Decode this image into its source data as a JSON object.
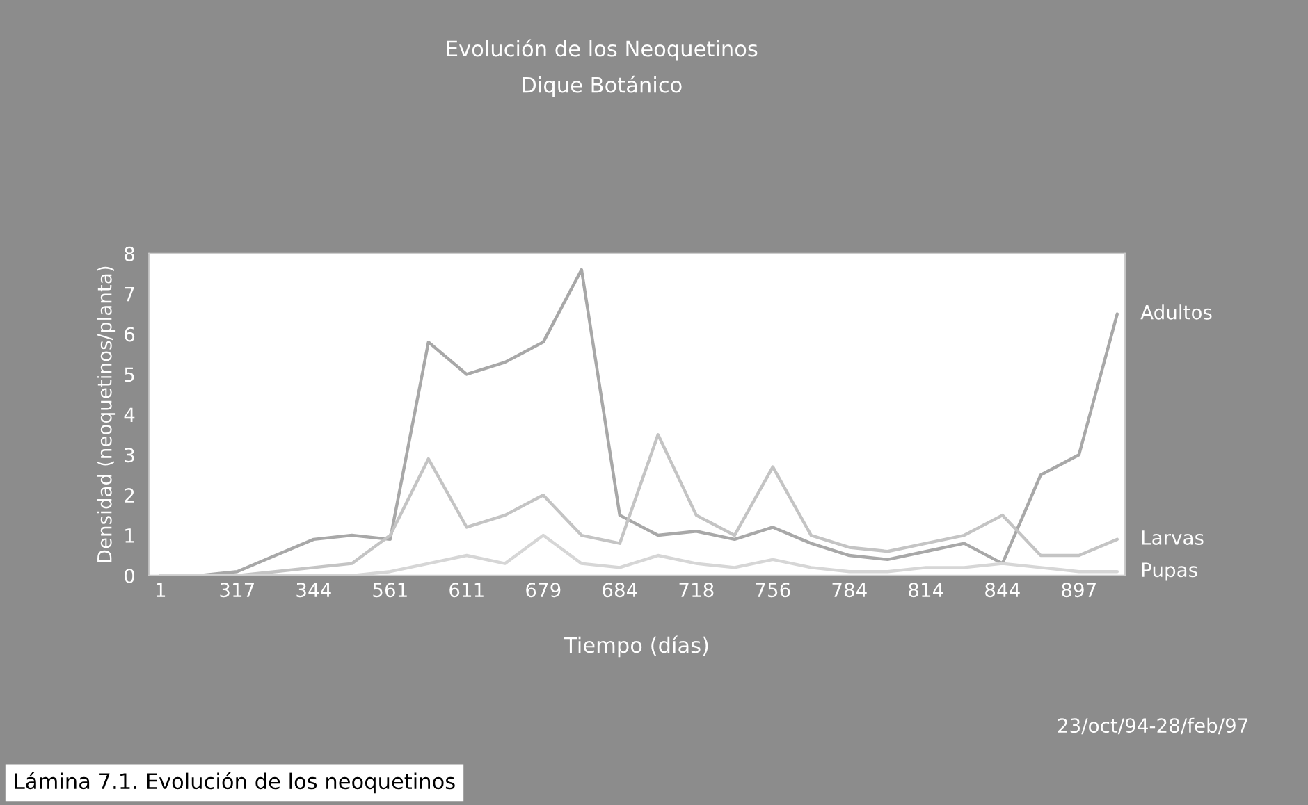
{
  "chart_data": {
    "type": "line",
    "title": "Evolución de los Neoquetinos",
    "subtitle": "Dique Botánico",
    "xlabel": "Tiempo (días)",
    "ylabel": "Densidad (neoquetinos/planta)",
    "categories": [
      "1",
      null,
      "317",
      null,
      "344",
      null,
      "561",
      null,
      "611",
      null,
      "679",
      null,
      "684",
      null,
      "718",
      null,
      "756",
      null,
      "784",
      null,
      "814",
      null,
      "844",
      null,
      "897",
      null
    ],
    "ylim": [
      0,
      8
    ],
    "yticks": [
      0,
      1,
      2,
      3,
      4,
      5,
      6,
      7,
      8
    ],
    "grid": false,
    "legend": false,
    "series": [
      {
        "name": "Adultos",
        "color": "#a8a8a8",
        "values": [
          0,
          0,
          0.1,
          0.5,
          0.9,
          1.0,
          0.9,
          5.8,
          5.0,
          5.3,
          5.8,
          7.6,
          1.5,
          1.0,
          1.1,
          0.9,
          1.2,
          0.8,
          0.5,
          0.4,
          0.6,
          0.8,
          0.3,
          2.5,
          3.0,
          6.5
        ]
      },
      {
        "name": "Larvas",
        "color": "#c4c4c4",
        "values": [
          0,
          0,
          0,
          0.1,
          0.2,
          0.3,
          1.0,
          2.9,
          1.2,
          1.5,
          2.0,
          1.0,
          0.8,
          3.5,
          1.5,
          1.0,
          2.7,
          1.0,
          0.7,
          0.6,
          0.8,
          1.0,
          1.5,
          0.5,
          0.5,
          0.9
        ]
      },
      {
        "name": "Pupas",
        "color": "#d6d6d6",
        "values": [
          0,
          0,
          0,
          0,
          0,
          0,
          0.1,
          0.3,
          0.5,
          0.3,
          1.0,
          0.3,
          0.2,
          0.5,
          0.3,
          0.2,
          0.4,
          0.2,
          0.1,
          0.1,
          0.2,
          0.2,
          0.3,
          0.2,
          0.1,
          0.1
        ]
      }
    ],
    "annotations": [
      "23/oct/94-28/feb/97",
      "Lámina 7.1. Evolución de los neoquetinos"
    ]
  }
}
